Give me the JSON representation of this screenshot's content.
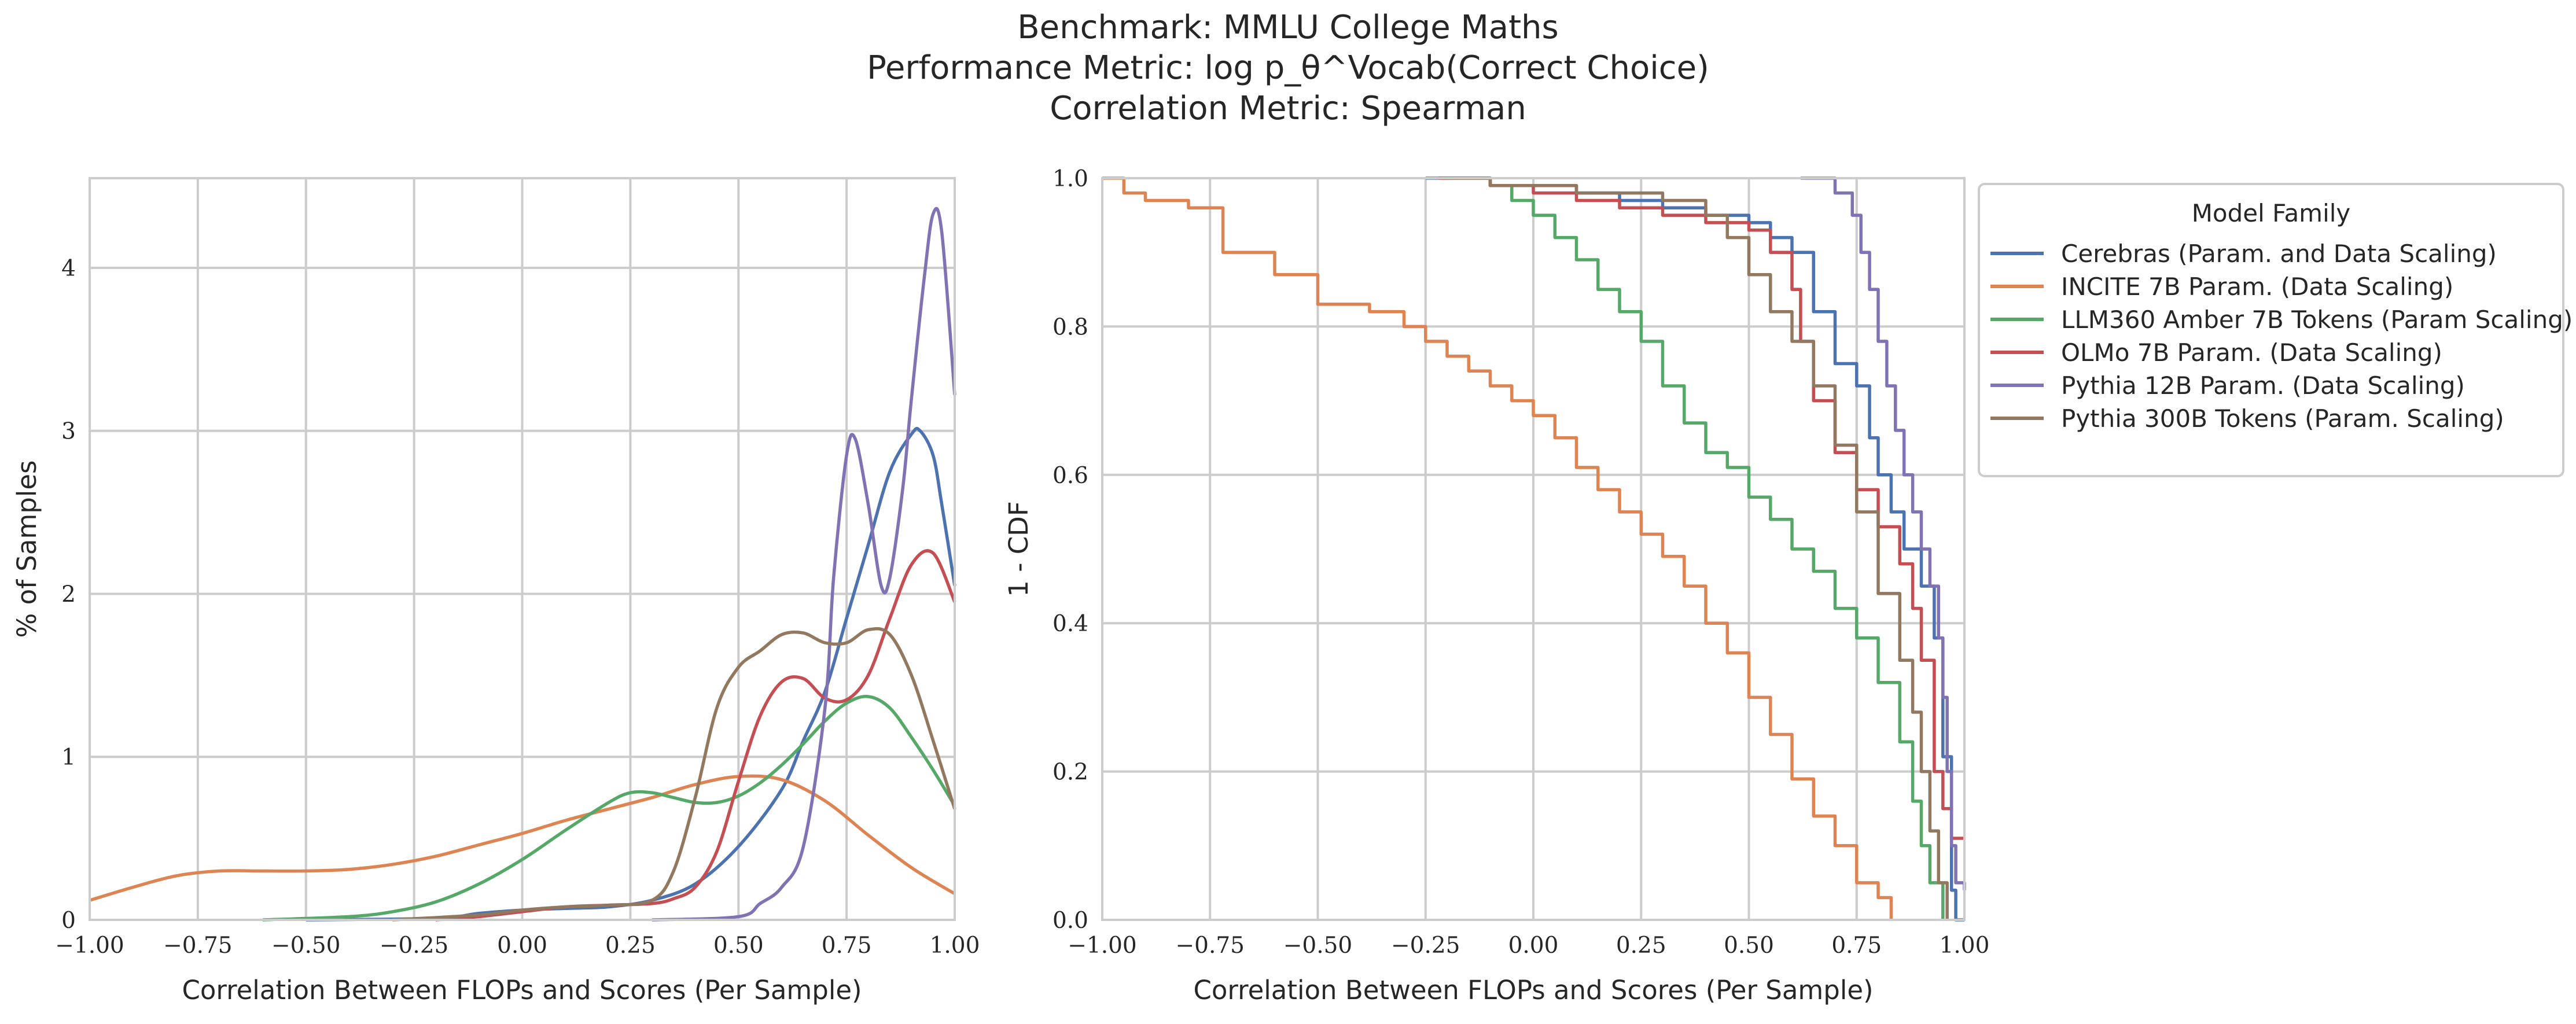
{
  "title": {
    "line1": "Benchmark: MMLU College Maths",
    "line2": "Performance Metric: log p_θ^Vocab(Correct Choice)",
    "line3": "Correlation Metric: Spearman"
  },
  "colors": {
    "Cerebras": "#4c72b0",
    "INCITE": "#dd8452",
    "LLM360": "#55a868",
    "OLMo": "#c44e52",
    "Pythia12B": "#8172b3",
    "Pythia300B": "#937860"
  },
  "chart_data": [
    {
      "type": "line",
      "subtype": "kde",
      "xlabel": "Correlation Between FLOPs and Scores (Per Sample)",
      "ylabel": "% of Samples",
      "xlim": [
        -1.0,
        1.0
      ],
      "ylim": [
        0,
        4.55
      ],
      "x_ticks": [
        -1.0,
        -0.75,
        -0.5,
        -0.25,
        0.0,
        0.25,
        0.5,
        0.75,
        1.0
      ],
      "x_tick_labels": [
        "−1.00",
        "−0.75",
        "−0.50",
        "−0.25",
        "0.00",
        "0.25",
        "0.50",
        "0.75",
        "1.00"
      ],
      "y_ticks": [
        0,
        1,
        2,
        3,
        4
      ],
      "y_tick_labels": [
        "0",
        "1",
        "2",
        "3",
        "4"
      ],
      "grid": true,
      "series": [
        {
          "name": "Cerebras (Param. and Data Scaling)",
          "key": "Cerebras",
          "x": [
            -0.5,
            -0.2,
            -0.1,
            0.0,
            0.1,
            0.2,
            0.3,
            0.4,
            0.5,
            0.6,
            0.65,
            0.7,
            0.75,
            0.8,
            0.85,
            0.9,
            0.92,
            0.95,
            0.97,
            1.0
          ],
          "y": [
            0.0,
            0.01,
            0.04,
            0.06,
            0.07,
            0.08,
            0.12,
            0.22,
            0.45,
            0.8,
            1.1,
            1.4,
            1.85,
            2.3,
            2.75,
            2.98,
            3.0,
            2.85,
            2.55,
            2.05
          ]
        },
        {
          "name": "INCITE 7B Param. (Data Scaling)",
          "key": "INCITE",
          "x": [
            -1.0,
            -0.9,
            -0.8,
            -0.7,
            -0.6,
            -0.5,
            -0.4,
            -0.3,
            -0.2,
            -0.1,
            0.0,
            0.1,
            0.2,
            0.3,
            0.4,
            0.5,
            0.6,
            0.7,
            0.8,
            0.9,
            1.0
          ],
          "y": [
            0.12,
            0.2,
            0.27,
            0.3,
            0.3,
            0.3,
            0.31,
            0.34,
            0.39,
            0.46,
            0.53,
            0.61,
            0.68,
            0.75,
            0.83,
            0.88,
            0.86,
            0.73,
            0.52,
            0.32,
            0.16
          ]
        },
        {
          "name": "LLM360 Amber 7B Tokens (Param Scaling)",
          "key": "LLM360",
          "x": [
            -0.6,
            -0.4,
            -0.3,
            -0.2,
            -0.1,
            0.0,
            0.1,
            0.2,
            0.25,
            0.3,
            0.35,
            0.4,
            0.45,
            0.5,
            0.55,
            0.6,
            0.65,
            0.7,
            0.75,
            0.8,
            0.85,
            0.9,
            0.95,
            1.0
          ],
          "y": [
            0.0,
            0.02,
            0.05,
            0.11,
            0.22,
            0.37,
            0.55,
            0.72,
            0.78,
            0.78,
            0.75,
            0.72,
            0.72,
            0.76,
            0.84,
            0.95,
            1.08,
            1.22,
            1.33,
            1.37,
            1.3,
            1.12,
            0.92,
            0.7
          ]
        },
        {
          "name": "OLMo 7B Param. (Data Scaling)",
          "key": "OLMo",
          "x": [
            -0.2,
            -0.1,
            0.0,
            0.1,
            0.2,
            0.3,
            0.35,
            0.4,
            0.45,
            0.5,
            0.55,
            0.6,
            0.65,
            0.7,
            0.75,
            0.8,
            0.85,
            0.9,
            0.95,
            1.0
          ],
          "y": [
            0.0,
            0.02,
            0.05,
            0.08,
            0.09,
            0.1,
            0.13,
            0.2,
            0.42,
            0.85,
            1.25,
            1.46,
            1.48,
            1.36,
            1.35,
            1.5,
            1.85,
            2.18,
            2.25,
            1.95
          ]
        },
        {
          "name": "Pythia 12B Param. (Data Scaling)",
          "key": "Pythia12B",
          "x": [
            0.3,
            0.5,
            0.55,
            0.6,
            0.65,
            0.7,
            0.72,
            0.75,
            0.77,
            0.8,
            0.83,
            0.85,
            0.88,
            0.9,
            0.93,
            0.95,
            0.97,
            1.0
          ],
          "y": [
            0.0,
            0.02,
            0.1,
            0.2,
            0.45,
            1.3,
            2.1,
            2.85,
            2.95,
            2.55,
            2.05,
            2.1,
            2.65,
            3.2,
            3.95,
            4.33,
            4.22,
            3.22
          ]
        },
        {
          "name": "Pythia 300B Tokens (Param. Scaling)",
          "key": "Pythia300B",
          "x": [
            -0.3,
            -0.1,
            0.0,
            0.1,
            0.2,
            0.3,
            0.35,
            0.4,
            0.45,
            0.5,
            0.55,
            0.6,
            0.65,
            0.7,
            0.75,
            0.8,
            0.85,
            0.9,
            0.95,
            1.0
          ],
          "y": [
            0.0,
            0.03,
            0.06,
            0.08,
            0.09,
            0.12,
            0.3,
            0.75,
            1.3,
            1.55,
            1.65,
            1.75,
            1.76,
            1.7,
            1.7,
            1.78,
            1.75,
            1.5,
            1.1,
            0.68
          ]
        }
      ]
    },
    {
      "type": "line",
      "subtype": "survival-step",
      "xlabel": "Correlation Between FLOPs and Scores (Per Sample)",
      "ylabel": "1 - CDF",
      "xlim": [
        -1.0,
        1.0
      ],
      "ylim": [
        0.0,
        1.0
      ],
      "x_ticks": [
        -1.0,
        -0.75,
        -0.5,
        -0.25,
        0.0,
        0.25,
        0.5,
        0.75,
        1.0
      ],
      "x_tick_labels": [
        "−1.00",
        "−0.75",
        "−0.50",
        "−0.25",
        "0.00",
        "0.25",
        "0.50",
        "0.75",
        "1.00"
      ],
      "y_ticks": [
        0.0,
        0.2,
        0.4,
        0.6,
        0.8,
        1.0
      ],
      "y_tick_labels": [
        "0.0",
        "0.2",
        "0.4",
        "0.6",
        "0.8",
        "1.0"
      ],
      "grid": true,
      "legend": {
        "title": "Model Family",
        "placement": "outside-right-top"
      },
      "series": [
        {
          "name": "Cerebras (Param. and Data Scaling)",
          "key": "Cerebras",
          "x": [
            -0.25,
            -0.1,
            0.0,
            0.1,
            0.2,
            0.3,
            0.4,
            0.5,
            0.55,
            0.6,
            0.65,
            0.7,
            0.75,
            0.78,
            0.8,
            0.83,
            0.86,
            0.9,
            0.93,
            0.95,
            0.97,
            0.98,
            1.0
          ],
          "y": [
            1.0,
            0.99,
            0.99,
            0.98,
            0.97,
            0.96,
            0.95,
            0.94,
            0.92,
            0.9,
            0.82,
            0.75,
            0.72,
            0.65,
            0.6,
            0.55,
            0.5,
            0.45,
            0.38,
            0.22,
            0.04,
            0.0,
            0.0
          ]
        },
        {
          "name": "INCITE 7B Param. (Data Scaling)",
          "key": "INCITE",
          "x": [
            -1.0,
            -0.95,
            -0.9,
            -0.8,
            -0.72,
            -0.6,
            -0.5,
            -0.38,
            -0.3,
            -0.25,
            -0.2,
            -0.15,
            -0.1,
            -0.05,
            0.0,
            0.05,
            0.1,
            0.15,
            0.2,
            0.25,
            0.3,
            0.35,
            0.4,
            0.45,
            0.5,
            0.55,
            0.6,
            0.65,
            0.7,
            0.75,
            0.8,
            0.83
          ],
          "y": [
            1.0,
            0.98,
            0.97,
            0.96,
            0.9,
            0.87,
            0.83,
            0.82,
            0.8,
            0.78,
            0.76,
            0.74,
            0.72,
            0.7,
            0.68,
            0.65,
            0.61,
            0.58,
            0.55,
            0.52,
            0.49,
            0.45,
            0.4,
            0.36,
            0.3,
            0.25,
            0.19,
            0.14,
            0.1,
            0.05,
            0.03,
            0.0
          ]
        },
        {
          "name": "LLM360 Amber 7B Tokens (Param Scaling)",
          "key": "LLM360",
          "x": [
            -0.22,
            -0.1,
            -0.05,
            0.0,
            0.05,
            0.1,
            0.15,
            0.2,
            0.25,
            0.3,
            0.35,
            0.4,
            0.45,
            0.5,
            0.55,
            0.6,
            0.65,
            0.7,
            0.75,
            0.8,
            0.85,
            0.88,
            0.9,
            0.92,
            0.95
          ],
          "y": [
            1.0,
            0.99,
            0.97,
            0.95,
            0.92,
            0.89,
            0.85,
            0.82,
            0.78,
            0.72,
            0.67,
            0.63,
            0.61,
            0.57,
            0.54,
            0.5,
            0.47,
            0.42,
            0.38,
            0.32,
            0.24,
            0.16,
            0.1,
            0.05,
            0.0
          ]
        },
        {
          "name": "OLMo 7B Param. (Data Scaling)",
          "key": "OLMo",
          "x": [
            -0.22,
            -0.1,
            0.0,
            0.1,
            0.2,
            0.3,
            0.4,
            0.5,
            0.55,
            0.6,
            0.62,
            0.65,
            0.7,
            0.75,
            0.8,
            0.85,
            0.88,
            0.9,
            0.93,
            0.95,
            0.97,
            1.0
          ],
          "y": [
            1.0,
            0.99,
            0.98,
            0.97,
            0.96,
            0.95,
            0.94,
            0.93,
            0.9,
            0.85,
            0.78,
            0.7,
            0.63,
            0.58,
            0.53,
            0.48,
            0.42,
            0.35,
            0.2,
            0.15,
            0.11,
            0.11
          ]
        },
        {
          "name": "Pythia 12B Param. (Data Scaling)",
          "key": "Pythia12B",
          "x": [
            0.62,
            0.7,
            0.74,
            0.76,
            0.78,
            0.8,
            0.82,
            0.84,
            0.86,
            0.88,
            0.9,
            0.92,
            0.94,
            0.95,
            0.96,
            0.97,
            0.98,
            1.0
          ],
          "y": [
            1.0,
            0.98,
            0.95,
            0.9,
            0.85,
            0.78,
            0.72,
            0.66,
            0.6,
            0.55,
            0.5,
            0.45,
            0.38,
            0.3,
            0.2,
            0.1,
            0.05,
            0.04
          ]
        },
        {
          "name": "Pythia 300B Tokens (Param. Scaling)",
          "key": "Pythia300B",
          "x": [
            -0.2,
            -0.1,
            0.0,
            0.1,
            0.2,
            0.3,
            0.35,
            0.4,
            0.45,
            0.5,
            0.55,
            0.6,
            0.65,
            0.7,
            0.75,
            0.8,
            0.85,
            0.88,
            0.9,
            0.92,
            0.94,
            0.96
          ],
          "y": [
            1.0,
            0.99,
            0.99,
            0.98,
            0.98,
            0.97,
            0.97,
            0.95,
            0.92,
            0.87,
            0.82,
            0.78,
            0.72,
            0.64,
            0.55,
            0.44,
            0.35,
            0.28,
            0.2,
            0.12,
            0.05,
            0.0
          ]
        }
      ]
    }
  ]
}
